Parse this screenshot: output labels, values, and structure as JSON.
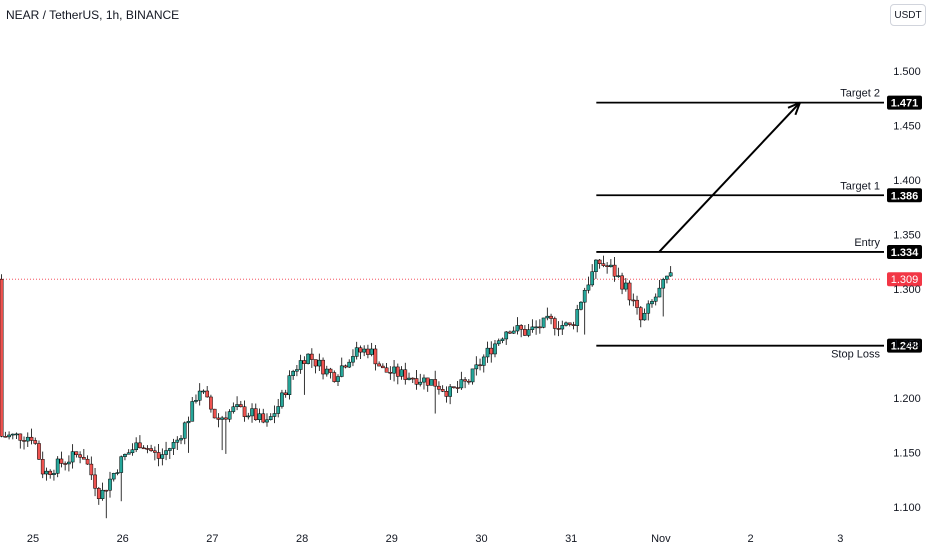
{
  "header": {
    "title": "NEAR / TetherUS, 1h, BINANCE"
  },
  "unit_badge": "USDT",
  "chart_data": {
    "type": "candlestick",
    "symbol": "NEAR / TetherUS",
    "interval": "1h",
    "exchange": "BINANCE",
    "y_ticks": [
      1.1,
      1.15,
      1.2,
      1.25,
      1.3,
      1.35,
      1.4,
      1.45,
      1.5
    ],
    "y_tick_labels": [
      "1.100",
      "1.150",
      "1.200",
      "1.250",
      "1.300",
      "1.350",
      "1.400",
      "1.450",
      "1.500"
    ],
    "ylim": [
      1.085,
      1.53
    ],
    "x_labels": [
      "25",
      "26",
      "27",
      "28",
      "29",
      "30",
      "31",
      "Nov",
      "2",
      "3"
    ],
    "xlim": [
      0,
      10.4
    ],
    "up_color": "#26a69a",
    "down_color": "#ef5350",
    "current_price": {
      "value": 1.309,
      "label": "1.309",
      "color": "#f23645"
    },
    "levels": [
      {
        "name": "Target 2",
        "value": 1.471,
        "label": "1.471"
      },
      {
        "name": "Target 1",
        "value": 1.386,
        "label": "1.386"
      },
      {
        "name": "Entry",
        "value": 1.334,
        "label": "1.334"
      },
      {
        "name": "Stop Loss",
        "value": 1.248,
        "label": "1.248"
      }
    ],
    "levels_start_x": 6.28,
    "projection_arrow": {
      "from": {
        "x": 6.98,
        "y": 1.334
      },
      "to": {
        "x": 8.55,
        "y": 1.471
      }
    },
    "candle_step": 0.04167,
    "path_anchors": [
      [
        0.0,
        1.165
      ],
      [
        0.12,
        1.13
      ],
      [
        0.3,
        1.14
      ],
      [
        0.55,
        1.15
      ],
      [
        0.75,
        1.11
      ],
      [
        1.0,
        1.145
      ],
      [
        1.2,
        1.16
      ],
      [
        1.4,
        1.145
      ],
      [
        1.6,
        1.16
      ],
      [
        1.75,
        1.185
      ],
      [
        1.85,
        1.21
      ],
      [
        1.95,
        1.195
      ],
      [
        2.05,
        1.18
      ],
      [
        2.25,
        1.19
      ],
      [
        2.45,
        1.185
      ],
      [
        2.6,
        1.175
      ],
      [
        2.75,
        1.195
      ],
      [
        2.9,
        1.225
      ],
      [
        3.05,
        1.24
      ],
      [
        3.2,
        1.23
      ],
      [
        3.35,
        1.22
      ],
      [
        3.55,
        1.24
      ],
      [
        3.75,
        1.245
      ],
      [
        3.9,
        1.225
      ],
      [
        4.2,
        1.22
      ],
      [
        4.45,
        1.215
      ],
      [
        4.65,
        1.205
      ],
      [
        4.85,
        1.215
      ],
      [
        5.05,
        1.24
      ],
      [
        5.3,
        1.265
      ],
      [
        5.5,
        1.26
      ],
      [
        5.75,
        1.27
      ],
      [
        6.0,
        1.265
      ],
      [
        6.15,
        1.3
      ],
      [
        6.3,
        1.325
      ],
      [
        6.45,
        1.318
      ],
      [
        6.62,
        1.3
      ],
      [
        6.78,
        1.27
      ],
      [
        6.92,
        1.29
      ],
      [
        7.08,
        1.31
      ],
      [
        7.15,
        1.309
      ]
    ]
  }
}
